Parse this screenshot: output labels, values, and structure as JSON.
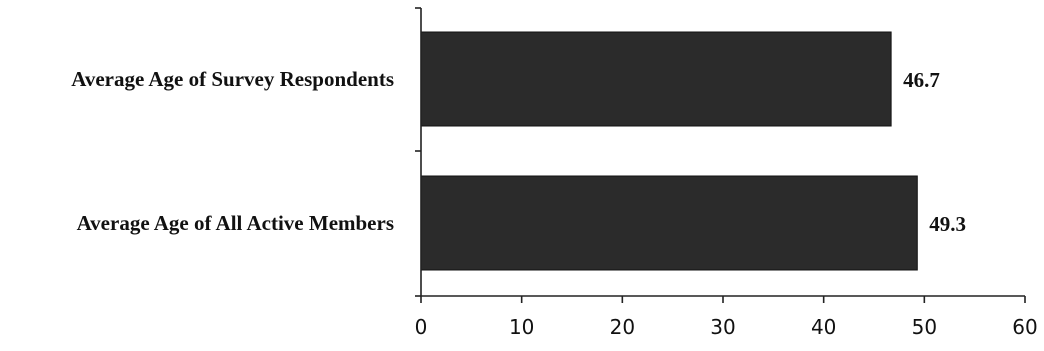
{
  "chart_data": {
    "type": "bar",
    "orientation": "horizontal",
    "categories": [
      "Average Age of Survey Respondents",
      "Average Age of All Active Members"
    ],
    "values": [
      46.7,
      49.3
    ],
    "value_labels": [
      "46.7",
      "49.3"
    ],
    "xlim": [
      0,
      60
    ],
    "xticks": [
      0,
      10,
      20,
      30,
      40,
      50,
      60
    ],
    "xtick_labels": [
      "0",
      "10",
      "20",
      "30",
      "40",
      "50",
      "60"
    ],
    "grid": false,
    "legend": "none",
    "bar_color": "#2b2b2b"
  }
}
